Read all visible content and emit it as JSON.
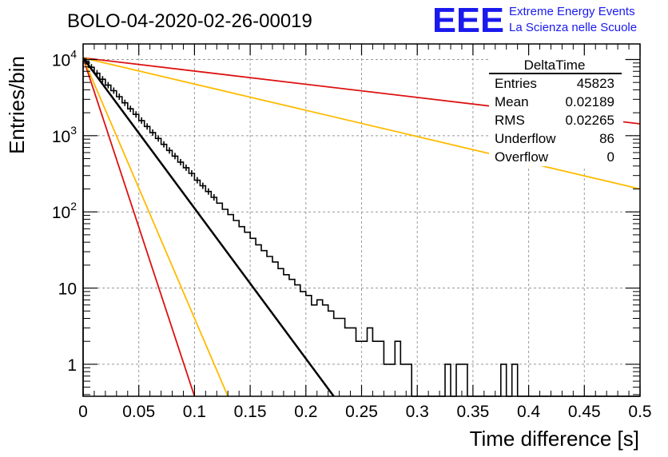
{
  "header": {
    "run_title": "BOLO-04-2020-02-26-00019",
    "logo_text": "EEE",
    "logo_line1": "Extreme Energy Events",
    "logo_line2": "La Scienza nelle Scuole"
  },
  "stats_box": {
    "title": "DeltaTime",
    "rows": [
      {
        "label": "Entries",
        "value": "45823"
      },
      {
        "label": "Mean",
        "value": "0.02189"
      },
      {
        "label": "RMS",
        "value": "0.02265"
      },
      {
        "label": "Underflow",
        "value": "86"
      },
      {
        "label": "Overflow",
        "value": "0"
      }
    ]
  },
  "colors": {
    "histogram": "#000000",
    "fit": "#000000",
    "red_curves": "#dd1111",
    "yellow_curves": "#ffbb00",
    "grid": "#999999",
    "logo": "#1a1aee"
  },
  "chart_data": {
    "type": "line",
    "xlabel": "Time difference [s]",
    "ylabel": "Entries/bin",
    "xlim": [
      0,
      0.5
    ],
    "ylim": [
      0.38,
      16000
    ],
    "yscale": "log",
    "grid": true,
    "x_ticks": [
      {
        "value": 0,
        "label": "0"
      },
      {
        "value": 0.05,
        "label": "0.05"
      },
      {
        "value": 0.1,
        "label": "0.1"
      },
      {
        "value": 0.15,
        "label": "0.15"
      },
      {
        "value": 0.2,
        "label": "0.2"
      },
      {
        "value": 0.25,
        "label": "0.25"
      },
      {
        "value": 0.3,
        "label": "0.3"
      },
      {
        "value": 0.35,
        "label": "0.35"
      },
      {
        "value": 0.4,
        "label": "0.4"
      },
      {
        "value": 0.45,
        "label": "0.45"
      },
      {
        "value": 0.5,
        "label": "0.5"
      }
    ],
    "y_ticks": [
      {
        "value": 1,
        "label": "1"
      },
      {
        "value": 10,
        "label": "10"
      },
      {
        "value": 100,
        "label": "10",
        "exp": "2"
      },
      {
        "value": 1000,
        "label": "10",
        "exp": "3"
      },
      {
        "value": 10000,
        "label": "10",
        "exp": "4"
      }
    ],
    "histogram": {
      "bin_width": 0.005,
      "counts": [
        9500,
        7900,
        6600,
        5500,
        4600,
        3900,
        3250,
        2700,
        2250,
        1900,
        1580,
        1320,
        1100,
        920,
        770,
        640,
        540,
        450,
        380,
        320,
        260,
        220,
        185,
        155,
        130,
        108,
        92,
        77,
        64,
        54,
        45,
        37,
        31,
        26,
        22,
        18,
        15,
        13,
        11,
        9,
        8,
        6,
        7,
        6,
        5,
        4,
        4,
        3,
        3,
        2,
        2,
        3,
        2,
        2,
        1,
        1,
        2,
        1,
        1,
        0,
        0,
        0,
        0,
        0,
        0,
        1,
        0,
        1,
        1,
        0,
        0,
        0,
        0,
        0,
        0,
        1,
        0,
        1,
        0,
        0,
        0,
        0,
        0,
        0,
        0,
        0,
        0,
        0,
        0,
        0,
        0,
        0,
        0,
        0,
        0,
        0,
        0,
        0,
        0,
        0
      ]
    },
    "series": [
      {
        "color": "black",
        "x": [
          0,
          0.225
        ],
        "y": [
          10500,
          0.38
        ]
      },
      {
        "color": "red",
        "x": [
          0,
          0.5
        ],
        "y": [
          10500,
          1430
        ]
      },
      {
        "color": "yellow",
        "x": [
          0,
          0.5
        ],
        "y": [
          10500,
          200
        ]
      },
      {
        "color": "red",
        "x": [
          0,
          0.1
        ],
        "y": [
          10500,
          0.38
        ]
      },
      {
        "color": "yellow",
        "x": [
          0,
          0.13
        ],
        "y": [
          10500,
          0.38
        ]
      }
    ]
  }
}
